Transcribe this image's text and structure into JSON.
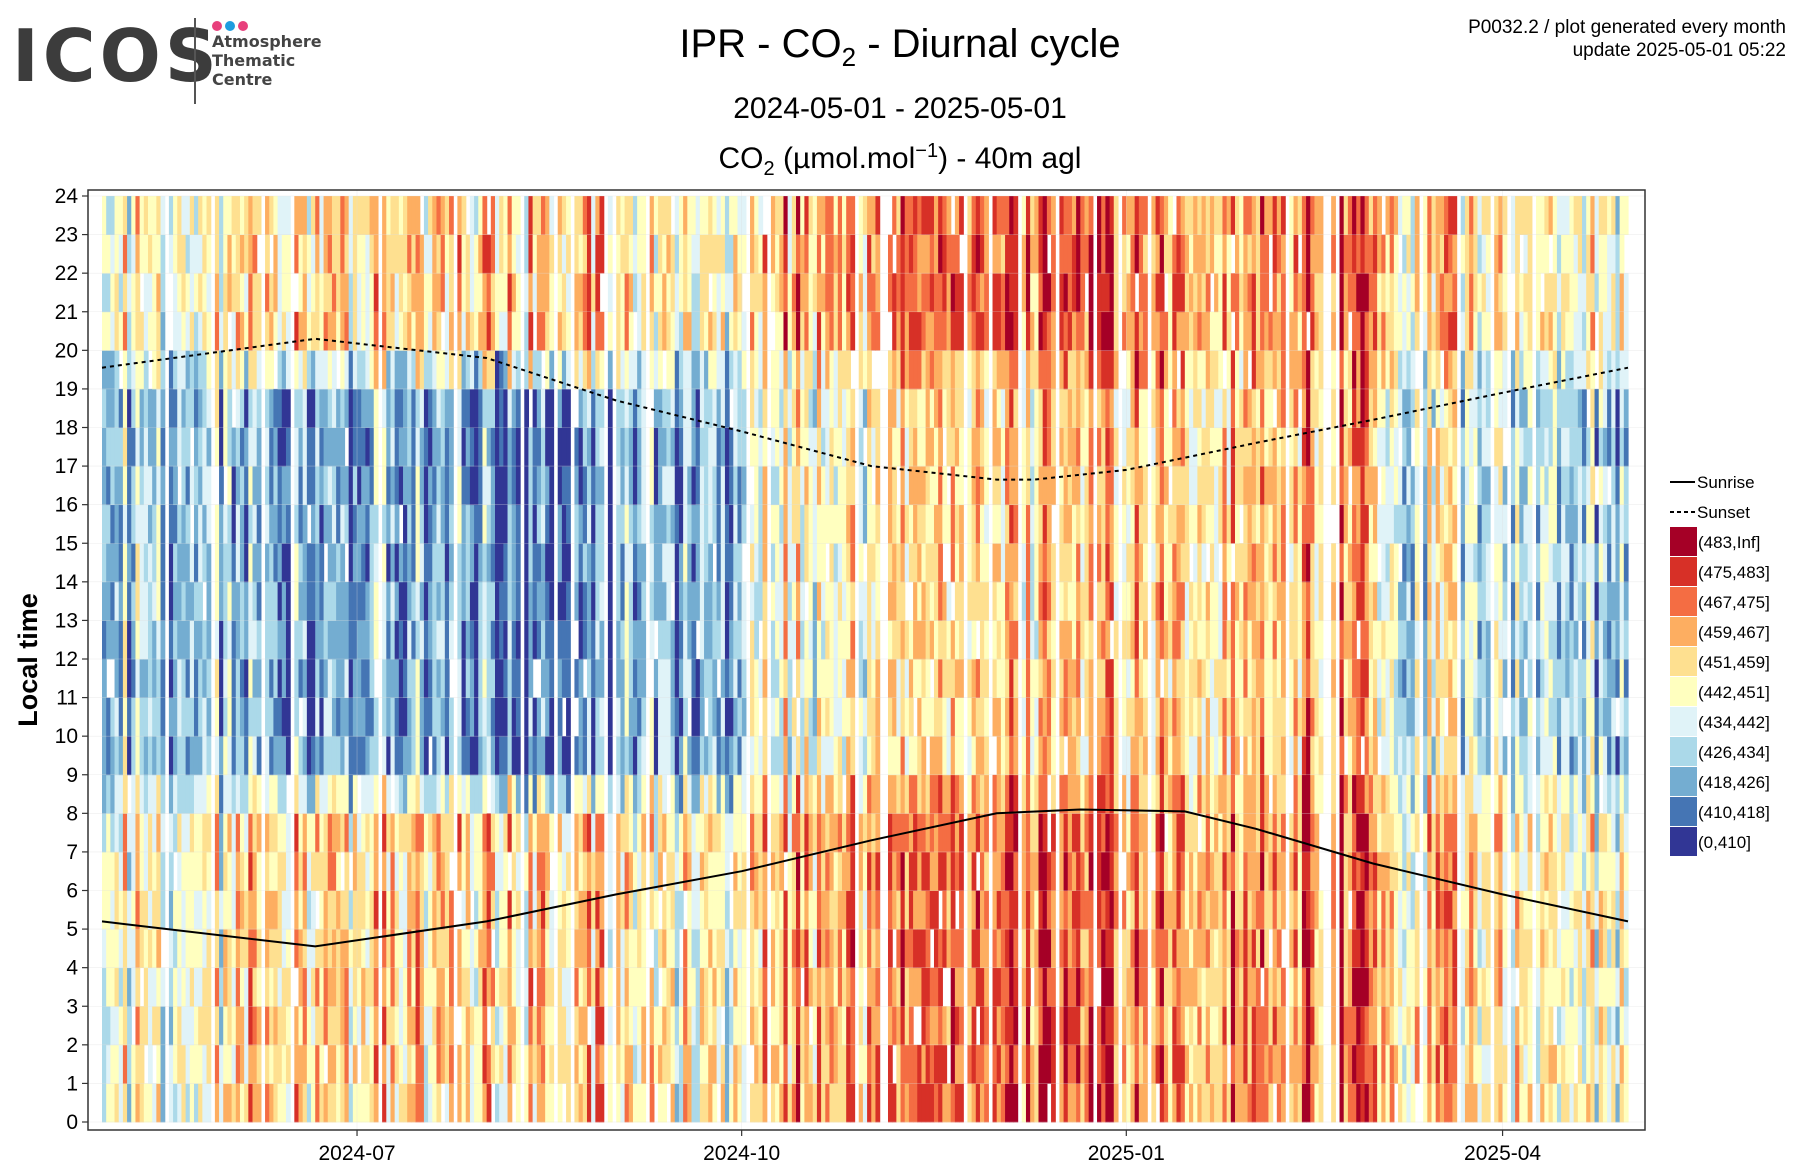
{
  "header": {
    "logo": {
      "word": "ICOS",
      "lines": [
        "Atmosphere",
        "Thematic",
        "Centre"
      ],
      "dot_colors": [
        "#e8407c",
        "#1e9de0",
        "#e8407c"
      ]
    },
    "title_parts": [
      "IPR - CO",
      "2",
      " - Diurnal cycle"
    ],
    "period": "2024-05-01 - 2025-05-01",
    "variable_parts": [
      "CO",
      "2",
      " (µmol.mol",
      "−1",
      ") - 40m agl"
    ],
    "meta_line1": "P0032.2 / plot generated every month",
    "meta_line2": "update  2025-05-01 05:22"
  },
  "chart_data": {
    "type": "heatmap",
    "ylabel": "Local time",
    "xlabel": "",
    "x_range": [
      "2024-05-01",
      "2025-05-01"
    ],
    "y_range": [
      0,
      24
    ],
    "x_ticks": [
      "2024-07",
      "2024-10",
      "2025-01",
      "2025-04"
    ],
    "x_tick_dates": [
      "2024-07-01",
      "2024-10-01",
      "2025-01-01",
      "2025-04-01"
    ],
    "y_ticks": [
      "0",
      "1",
      "2",
      "3",
      "4",
      "5",
      "6",
      "7",
      "8",
      "9",
      "10",
      "11",
      "12",
      "13",
      "14",
      "15",
      "16",
      "17",
      "18",
      "19",
      "20",
      "21",
      "22",
      "23",
      "24"
    ],
    "grid": true,
    "legend_placement": "right",
    "lines": [
      {
        "name": "Sunrise",
        "style": "solid",
        "points": [
          [
            "2024-05-01",
            5.2
          ],
          [
            "2024-06-21",
            4.55
          ],
          [
            "2024-08-01",
            5.2
          ],
          [
            "2024-09-01",
            5.9
          ],
          [
            "2024-10-01",
            6.5
          ],
          [
            "2024-11-01",
            7.3
          ],
          [
            "2024-12-01",
            8.0
          ],
          [
            "2024-12-21",
            8.1
          ],
          [
            "2025-01-15",
            8.05
          ],
          [
            "2025-02-01",
            7.6
          ],
          [
            "2025-03-01",
            6.7
          ],
          [
            "2025-04-01",
            5.9
          ],
          [
            "2025-05-01",
            5.2
          ]
        ]
      },
      {
        "name": "Sunset",
        "style": "dashed",
        "points": [
          [
            "2024-05-01",
            19.55
          ],
          [
            "2024-06-21",
            20.3
          ],
          [
            "2024-08-01",
            19.8
          ],
          [
            "2024-09-01",
            18.7
          ],
          [
            "2024-10-01",
            17.9
          ],
          [
            "2024-11-01",
            17.0
          ],
          [
            "2024-12-01",
            16.65
          ],
          [
            "2024-12-10",
            16.65
          ],
          [
            "2025-01-01",
            16.9
          ],
          [
            "2025-02-01",
            17.6
          ],
          [
            "2025-03-01",
            18.2
          ],
          [
            "2025-04-01",
            18.9
          ],
          [
            "2025-05-01",
            19.55
          ]
        ]
      }
    ],
    "legend": [
      {
        "label": "Sunrise",
        "kind": "line-solid"
      },
      {
        "label": "Sunset",
        "kind": "line-dashed"
      },
      {
        "label": "(483,Inf]",
        "color": "#a50026"
      },
      {
        "label": "(475,483]",
        "color": "#d73027"
      },
      {
        "label": "(467,475]",
        "color": "#f46d43"
      },
      {
        "label": "(459,467]",
        "color": "#fdae61"
      },
      {
        "label": "(451,459]",
        "color": "#fee090"
      },
      {
        "label": "(442,451]",
        "color": "#ffffbf"
      },
      {
        "label": "(434,442]",
        "color": "#e0f3f8"
      },
      {
        "label": "(426,434]",
        "color": "#abd9e9"
      },
      {
        "label": "(418,426]",
        "color": "#74add1"
      },
      {
        "label": "(410,418]",
        "color": "#4575b4"
      },
      {
        "label": "(0,410]",
        "color": "#313695"
      }
    ],
    "class_colors": [
      "#a50026",
      "#d73027",
      "#f46d43",
      "#fdae61",
      "#fee090",
      "#ffffbf",
      "#e0f3f8",
      "#abd9e9",
      "#74add1",
      "#4575b4",
      "#313695"
    ],
    "monthly_mean_class_index": {
      "2024-05": {
        "night": 5,
        "day": 7
      },
      "2024-06": {
        "night": 4,
        "day": 8
      },
      "2024-07": {
        "night": 4,
        "day": 8
      },
      "2024-08": {
        "night": 4,
        "day": 9
      },
      "2024-09": {
        "night": 5,
        "day": 8
      },
      "2024-10": {
        "night": 3,
        "day": 5
      },
      "2024-11": {
        "night": 1,
        "day": 3
      },
      "2024-12": {
        "night": 2,
        "day": 4
      },
      "2025-01": {
        "night": 3,
        "day": 4
      },
      "2025-02": {
        "night": 2,
        "day": 3
      },
      "2025-03": {
        "night": 4,
        "day": 6
      },
      "2025-04": {
        "night": 5,
        "day": 7
      }
    }
  }
}
